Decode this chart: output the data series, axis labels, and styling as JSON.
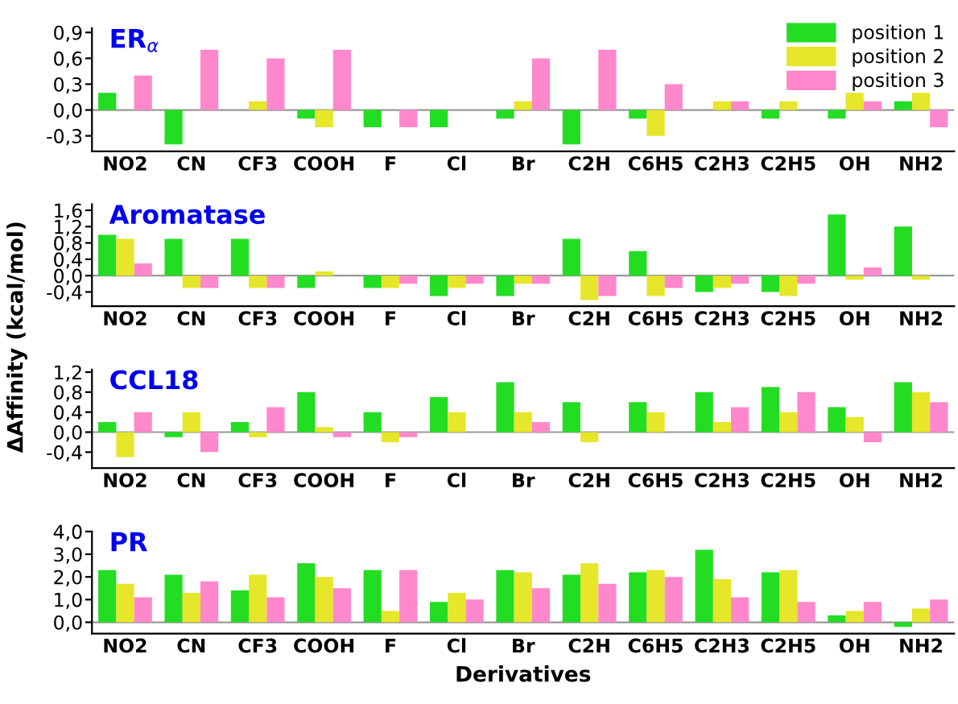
{
  "chart_data": [
    {
      "type": "bar",
      "title": "ER$_{α}$",
      "categories": [
        "NO2",
        "CN",
        "CF3",
        "COOH",
        "F",
        "Cl",
        "Br",
        "C2H",
        "C6H5",
        "C2H3",
        "C2H5",
        "OH",
        "NH2"
      ],
      "series": [
        {
          "name": "position 1",
          "color": "#22dd22",
          "values": [
            0.2,
            -0.4,
            0,
            -0.1,
            -0.2,
            -0.2,
            -0.1,
            -0.4,
            -0.1,
            0,
            -0.1,
            -0.1,
            0.1
          ]
        },
        {
          "name": "position 2",
          "color": "#e6e62a",
          "values": [
            0,
            0,
            0.1,
            -0.2,
            0,
            0,
            0.1,
            0,
            -0.3,
            0.1,
            0.1,
            0.2,
            0.2
          ]
        },
        {
          "name": "position 3",
          "color": "#ff88cc",
          "values": [
            0.4,
            0.7,
            0.6,
            0.7,
            -0.2,
            0,
            0.6,
            0.7,
            0.3,
            0.1,
            0,
            0.1,
            -0.2
          ]
        }
      ],
      "ylim": [
        -0.48,
        0.95
      ],
      "yticks": [
        {
          "value": -0.3,
          "label": "-0,3"
        },
        {
          "value": 0,
          "label": "0,0"
        },
        {
          "value": 0.3,
          "label": "0,3"
        },
        {
          "value": 0.6,
          "label": "0,6"
        },
        {
          "value": 0.9,
          "label": "0,9"
        }
      ],
      "ref_lines": [
        {
          "axis": "y",
          "value": 0,
          "color": "#999999"
        }
      ],
      "legend": "top right"
    },
    {
      "type": "bar",
      "title": "Aromatase",
      "ylabel": "ΔAffinity (kcal/mol)",
      "categories": [
        "NO2",
        "CN",
        "CF3",
        "COOH",
        "F",
        "Cl",
        "Br",
        "C2H",
        "C6H5",
        "C2H3",
        "C2H5",
        "OH",
        "NH2"
      ],
      "series": [
        {
          "color": "#22dd22",
          "values": [
            1.0,
            0.9,
            0.9,
            -0.3,
            -0.3,
            -0.5,
            -0.5,
            0.9,
            0.6,
            -0.4,
            -0.4,
            1.5,
            1.2
          ]
        },
        {
          "color": "#e6e62a",
          "values": [
            0.9,
            -0.3,
            -0.3,
            0.1,
            -0.3,
            -0.3,
            -0.2,
            -0.6,
            -0.5,
            -0.3,
            -0.5,
            -0.1,
            -0.1
          ]
        },
        {
          "color": "#ff88cc",
          "values": [
            0.3,
            -0.3,
            -0.3,
            0,
            -0.2,
            -0.2,
            -0.2,
            -0.5,
            -0.3,
            -0.2,
            -0.2,
            0.2,
            0
          ]
        }
      ],
      "ylim": [
        -0.75,
        1.75
      ],
      "yticks": [
        {
          "value": -0.4,
          "label": "-0,4"
        },
        {
          "value": 0,
          "label": "0,0"
        },
        {
          "value": 0.4,
          "label": "0,4"
        },
        {
          "value": 0.8,
          "label": "0,8"
        },
        {
          "value": 1.2,
          "label": "1,2"
        },
        {
          "value": 1.6,
          "label": "1,6"
        }
      ],
      "ref_lines": [
        {
          "axis": "y",
          "value": 0,
          "color": "#999999"
        }
      ]
    },
    {
      "type": "bar",
      "title": "CCL18",
      "categories": [
        "NO2",
        "CN",
        "CF3",
        "COOH",
        "F",
        "Cl",
        "Br",
        "C2H",
        "C6H5",
        "C2H3",
        "C2H5",
        "OH",
        "NH2"
      ],
      "series": [
        {
          "color": "#22dd22",
          "values": [
            0.2,
            -0.1,
            0.2,
            0.8,
            0.4,
            0.7,
            1.0,
            0.6,
            0.6,
            0.8,
            0.9,
            0.5,
            1.0
          ]
        },
        {
          "color": "#e6e62a",
          "values": [
            -0.5,
            0.4,
            -0.1,
            0.1,
            -0.2,
            0.4,
            0.4,
            -0.2,
            0.4,
            0.2,
            0.4,
            0.3,
            0.8
          ]
        },
        {
          "color": "#ff88cc",
          "values": [
            0.4,
            -0.4,
            0.5,
            -0.1,
            -0.1,
            0,
            0.2,
            0,
            0,
            0.5,
            0.8,
            -0.2,
            0.6
          ]
        }
      ],
      "ylim": [
        -0.72,
        1.25
      ],
      "yticks": [
        {
          "value": -0.4,
          "label": "-0,4"
        },
        {
          "value": 0,
          "label": "0,0"
        },
        {
          "value": 0.4,
          "label": "0,4"
        },
        {
          "value": 0.8,
          "label": "0,8"
        },
        {
          "value": 1.2,
          "label": "1,2"
        }
      ],
      "ref_lines": [
        {
          "axis": "y",
          "value": 0,
          "color": "#999999"
        }
      ]
    },
    {
      "type": "bar",
      "title": "PR",
      "xlabel": "Derivatives",
      "categories": [
        "NO2",
        "CN",
        "CF3",
        "COOH",
        "F",
        "Cl",
        "Br",
        "C2H",
        "C6H5",
        "C2H3",
        "C2H5",
        "OH",
        "NH2"
      ],
      "series": [
        {
          "color": "#22dd22",
          "values": [
            2.3,
            2.1,
            1.4,
            2.6,
            2.3,
            0.9,
            2.3,
            2.1,
            2.2,
            3.2,
            2.2,
            0.3,
            -0.2
          ]
        },
        {
          "color": "#e6e62a",
          "values": [
            1.7,
            1.3,
            2.1,
            2.0,
            0.5,
            1.3,
            2.2,
            2.6,
            2.3,
            1.9,
            2.3,
            0.5,
            0.6
          ]
        },
        {
          "color": "#ff88cc",
          "values": [
            1.1,
            1.8,
            1.1,
            1.5,
            2.3,
            1.0,
            1.5,
            1.7,
            2.0,
            1.1,
            0.9,
            0.9,
            1.0
          ]
        }
      ],
      "ylim": [
        -0.5,
        4.0
      ],
      "yticks": [
        {
          "value": 0,
          "label": "0,0"
        },
        {
          "value": 1,
          "label": "1,0"
        },
        {
          "value": 2,
          "label": "2,0"
        },
        {
          "value": 3,
          "label": "3,0"
        },
        {
          "value": 4,
          "label": "4,0"
        }
      ],
      "ref_lines": [
        {
          "axis": "y",
          "value": 0,
          "color": "#999999"
        }
      ]
    }
  ]
}
